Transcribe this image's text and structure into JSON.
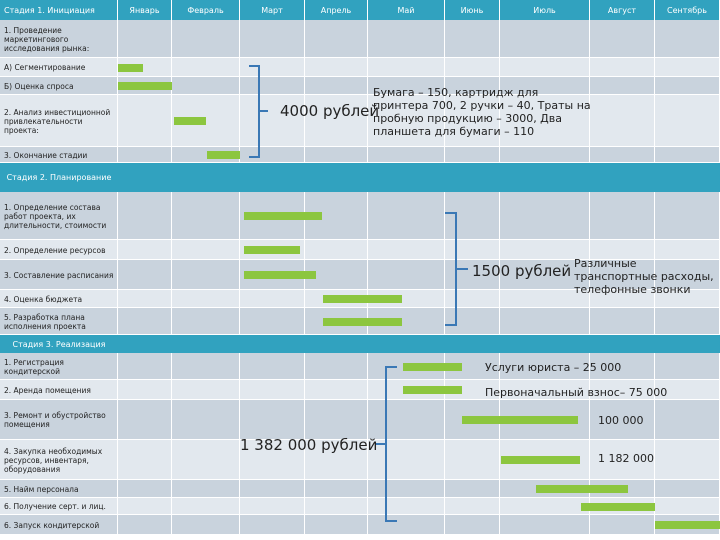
{
  "table": {
    "header": [
      "Стадия 1. Инициация",
      "Январь",
      "Февраль",
      "Март",
      "Апрель",
      "Май",
      "Июнь",
      "Июль",
      "Август",
      "Сентябрь"
    ],
    "rows": [
      {
        "task": "1. Проведение маркетингового исследования рынка:"
      },
      {
        "task": "А) Сегментирование"
      },
      {
        "task": "Б) Оценка спроса"
      },
      {
        "task": "2. Анализ инвестиционной привлекательности проекта:"
      },
      {
        "task": "3. Окончание стадии"
      },
      {
        "stage": "Стадия 2. Планирование"
      },
      {
        "task": "1. Определение состава работ проекта, их длительности, стоимости"
      },
      {
        "task": "2. Определение ресурсов"
      },
      {
        "task": "3. Составление расписания"
      },
      {
        "task": "4. Оценка бюджета"
      },
      {
        "task": "5. Разработка плана исполнения проекта"
      },
      {
        "stage": "Стадия 3. Реализация"
      },
      {
        "task": "1. Регистрация кондитерской"
      },
      {
        "task": "2. Аренда помещения"
      },
      {
        "task": "3. Ремонт и обустройство помещения"
      },
      {
        "task": "4. Закупка необходимых ресурсов, инвентаря, оборудования"
      },
      {
        "task": "5. Найм персонала"
      },
      {
        "task": "6. Получение серт. и лиц."
      },
      {
        "task": "6. Запуск кондитерской"
      }
    ]
  },
  "annotations": [
    {
      "total": "4000 рублей",
      "details": [
        "Бумага – 150, картридж для принтера 700, 2 ручки – 40, Траты на пробную продукцию – 3000, Два планшета для бумаги – 110"
      ]
    },
    {
      "total": "1500 рублей",
      "details": [
        "Различные транспортные расходы, телефонные звонки"
      ]
    },
    {
      "total": "1 382 000 рублей",
      "details": [
        "Услуги юриста – 25 000",
        "Первоначальный взнос– 75 000",
        "100 000",
        "1 182 000"
      ]
    }
  ]
}
